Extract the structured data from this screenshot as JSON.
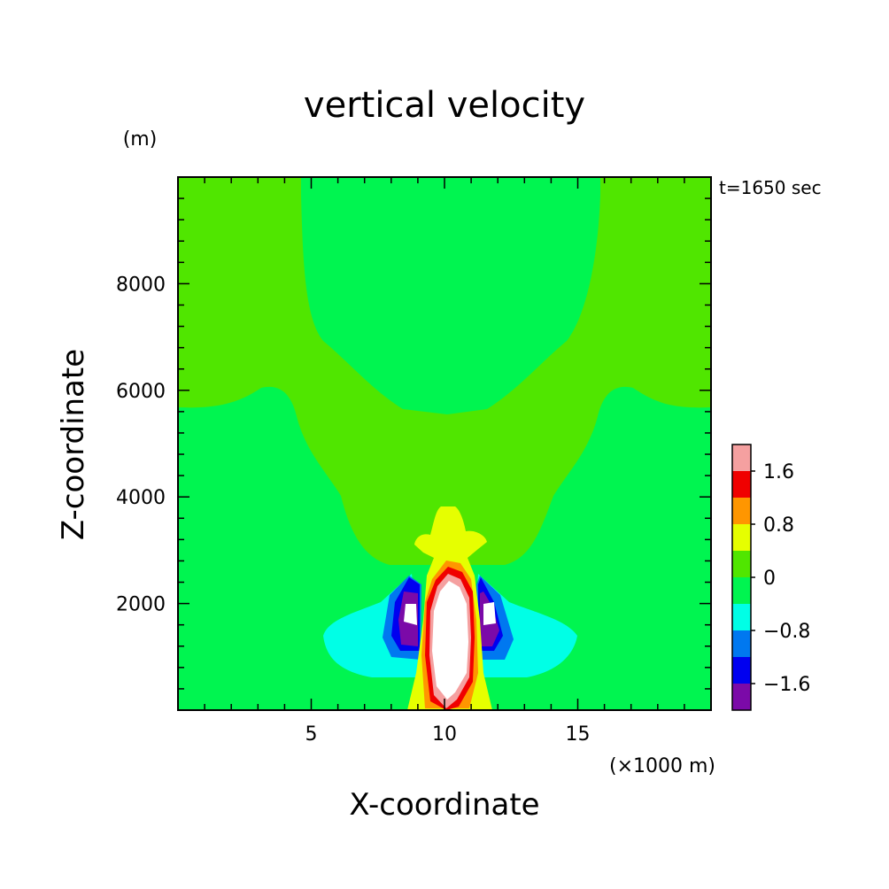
{
  "chart_data": {
    "type": "heatmap",
    "title": "vertical velocity",
    "xlabel": "X-coordinate",
    "ylabel": "Z-coordinate",
    "x_unit": "(×1000 m)",
    "y_unit": "(m)",
    "annotation": "t=1650 sec",
    "xlim": [
      0,
      20
    ],
    "ylim": [
      0,
      10000
    ],
    "x_ticks": [
      5,
      10,
      15
    ],
    "y_ticks": [
      2000,
      4000,
      6000,
      8000
    ],
    "x_tick_labels": [
      "5",
      "10",
      "15"
    ],
    "y_tick_labels": [
      "2000",
      "4000",
      "6000",
      "8000"
    ],
    "grid": false,
    "colorbar": {
      "position": "right",
      "levels": [
        -2.0,
        -1.6,
        -1.2,
        -0.8,
        -0.4,
        0,
        0.4,
        0.8,
        1.2,
        1.6,
        2.0
      ],
      "colors": [
        "#7b0aa8",
        "#0000f0",
        "#0078f0",
        "#00ffe6",
        "#00f550",
        "#50e600",
        "#e6ff00",
        "#ff9600",
        "#f00000",
        "#f5a0a0"
      ],
      "tick_values": [
        -1.6,
        -0.8,
        0,
        0.8,
        1.6
      ],
      "tick_labels": [
        "−1.6",
        "−0.8",
        "0",
        "0.8",
        "1.6"
      ]
    },
    "fields": [
      {
        "name": "background",
        "range": [
          -0.4,
          0
        ],
        "color": "#00f550"
      },
      {
        "name": "upper-weak-ascent",
        "range": [
          0,
          0.4
        ],
        "color": "#50e600"
      },
      {
        "name": "updraft-core",
        "range": [
          0.4,
          2.0
        ],
        "colors": [
          "#e6ff00",
          "#ff9600",
          "#f00000",
          "#f5a0a0",
          "#ffffff"
        ]
      },
      {
        "name": "flanking-downdrafts",
        "range": [
          -2.0,
          -0.4
        ],
        "colors": [
          "#00ffe6",
          "#0078f0",
          "#0000f0",
          "#7b0aa8",
          "#ffffff"
        ]
      }
    ]
  }
}
